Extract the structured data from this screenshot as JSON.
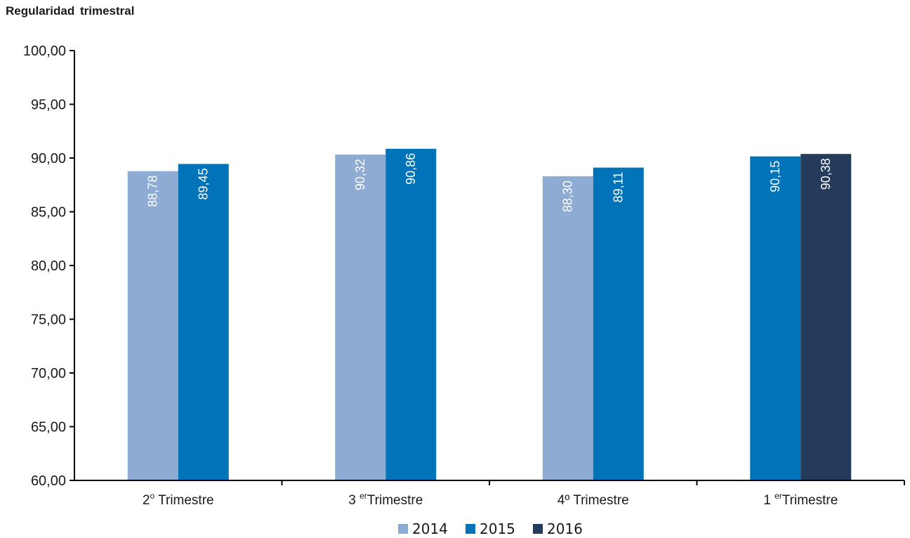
{
  "chart_data": {
    "type": "bar",
    "title": "Regularidad trimestral",
    "categories": [
      {
        "main": "2",
        "sup": "o",
        "rest": " Trimestre"
      },
      {
        "main": "3 ",
        "sup": "er",
        "rest": "Trimestre"
      },
      {
        "main": "4º Trimestre",
        "sup": "",
        "rest": ""
      },
      {
        "main": "1 ",
        "sup": "er",
        "rest": "Trimestre"
      }
    ],
    "series": [
      {
        "name": "2014",
        "color": "#8eabd3",
        "values": [
          88.78,
          90.32,
          88.3,
          null
        ]
      },
      {
        "name": "2015",
        "color": "#0173b9",
        "values": [
          89.45,
          90.86,
          89.11,
          90.15
        ]
      },
      {
        "name": "2016",
        "color": "#243b5b",
        "values": [
          null,
          null,
          null,
          90.38
        ]
      }
    ],
    "data_labels": [
      [
        "88,78",
        "90,32",
        "88,30",
        null
      ],
      [
        "89,45",
        "90,86",
        "89,11",
        "90,15"
      ],
      [
        null,
        null,
        null,
        "90,38"
      ]
    ],
    "yticks": [
      "60,00",
      "65,00",
      "70,00",
      "75,00",
      "80,00",
      "85,00",
      "90,00",
      "95,00",
      "100,00"
    ],
    "ylim": [
      60,
      100
    ],
    "grid": false,
    "legend_position": "bottom-center"
  }
}
